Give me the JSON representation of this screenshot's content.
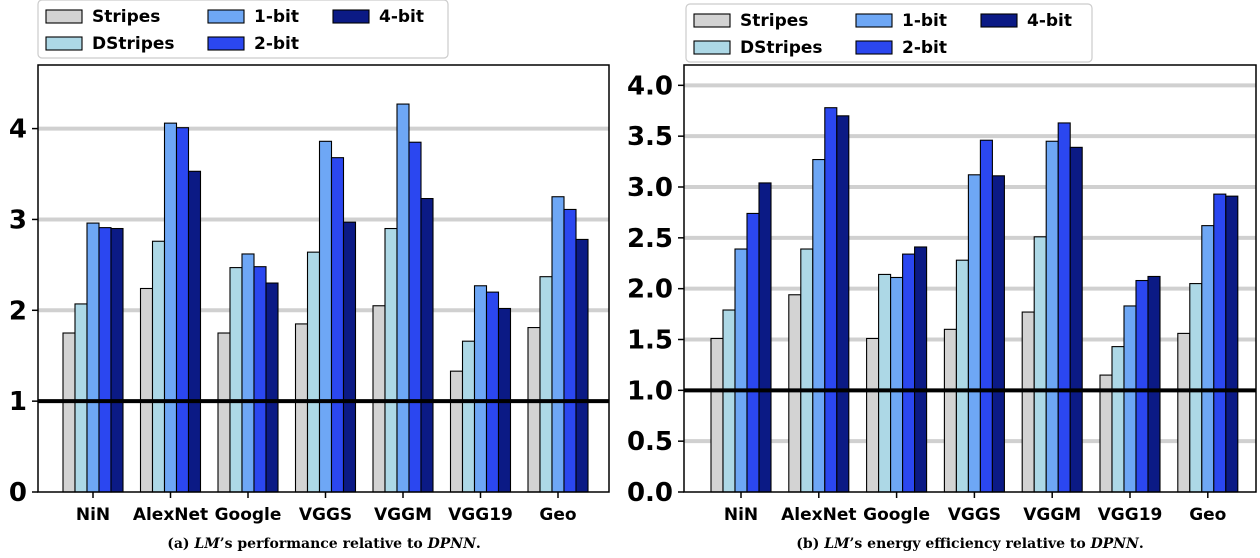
{
  "chart_data": [
    {
      "type": "bar",
      "title": "",
      "xlabel": "",
      "ylabel": "",
      "caption_prefix": "(a) ",
      "caption_lm": "LM",
      "caption_mid": "’s performance relative to ",
      "caption_dpnn": "DPNN",
      "caption_end": ".",
      "categories": [
        "NiN",
        "AlexNet",
        "Google",
        "VGGS",
        "VGGM",
        "VGG19",
        "Geo"
      ],
      "ylim": [
        0,
        4.7
      ],
      "yticks": [
        0,
        1,
        2,
        3,
        4
      ],
      "ytick_labels": [
        "0",
        "1",
        "2",
        "3",
        "4"
      ],
      "baseline": 1,
      "grid": "horizontal",
      "legend_position": "top-left",
      "series": [
        {
          "name": "Stripes",
          "color": "#d3d3d3",
          "values": [
            1.75,
            2.24,
            1.75,
            1.85,
            2.05,
            1.33,
            1.81
          ]
        },
        {
          "name": "DStripes",
          "color": "#add8e6",
          "values": [
            2.07,
            2.76,
            2.47,
            2.64,
            2.9,
            1.66,
            2.37
          ]
        },
        {
          "name": "1-bit",
          "color": "#6ea7f5",
          "values": [
            2.96,
            4.06,
            2.62,
            3.86,
            4.27,
            2.27,
            3.25
          ]
        },
        {
          "name": "2-bit",
          "color": "#2b47f0",
          "values": [
            2.91,
            4.01,
            2.48,
            3.68,
            3.85,
            2.2,
            3.11
          ]
        },
        {
          "name": "4-bit",
          "color": "#0b1a85",
          "values": [
            2.9,
            3.53,
            2.3,
            2.97,
            3.23,
            2.02,
            2.78
          ]
        }
      ]
    },
    {
      "type": "bar",
      "title": "",
      "xlabel": "",
      "ylabel": "",
      "caption_prefix": "(b) ",
      "caption_lm": "LM",
      "caption_mid": "’s energy efficiency relative to ",
      "caption_dpnn": "DPNN",
      "caption_end": ".",
      "categories": [
        "NiN",
        "AlexNet",
        "Google",
        "VGGS",
        "VGGM",
        "VGG19",
        "Geo"
      ],
      "ylim": [
        0,
        4.2
      ],
      "yticks": [
        0,
        0.5,
        1,
        1.5,
        2,
        2.5,
        3,
        3.5,
        4
      ],
      "ytick_labels": [
        "0.0",
        "0.5",
        "1.0",
        "1.5",
        "2.0",
        "2.5",
        "3.0",
        "3.5",
        "4.0"
      ],
      "baseline": 1,
      "grid": "horizontal",
      "legend_position": "top-left",
      "series": [
        {
          "name": "Stripes",
          "color": "#d3d3d3",
          "values": [
            1.51,
            1.94,
            1.51,
            1.6,
            1.77,
            1.15,
            1.56
          ]
        },
        {
          "name": "DStripes",
          "color": "#add8e6",
          "values": [
            1.79,
            2.39,
            2.14,
            2.28,
            2.51,
            1.43,
            2.05
          ]
        },
        {
          "name": "1-bit",
          "color": "#6ea7f5",
          "values": [
            2.39,
            3.27,
            2.11,
            3.12,
            3.45,
            1.83,
            2.62
          ]
        },
        {
          "name": "2-bit",
          "color": "#2b47f0",
          "values": [
            2.74,
            3.78,
            2.34,
            3.46,
            3.63,
            2.08,
            2.93
          ]
        },
        {
          "name": "4-bit",
          "color": "#0b1a85",
          "values": [
            3.04,
            3.7,
            2.41,
            3.11,
            3.39,
            2.12,
            2.91
          ]
        }
      ]
    }
  ]
}
